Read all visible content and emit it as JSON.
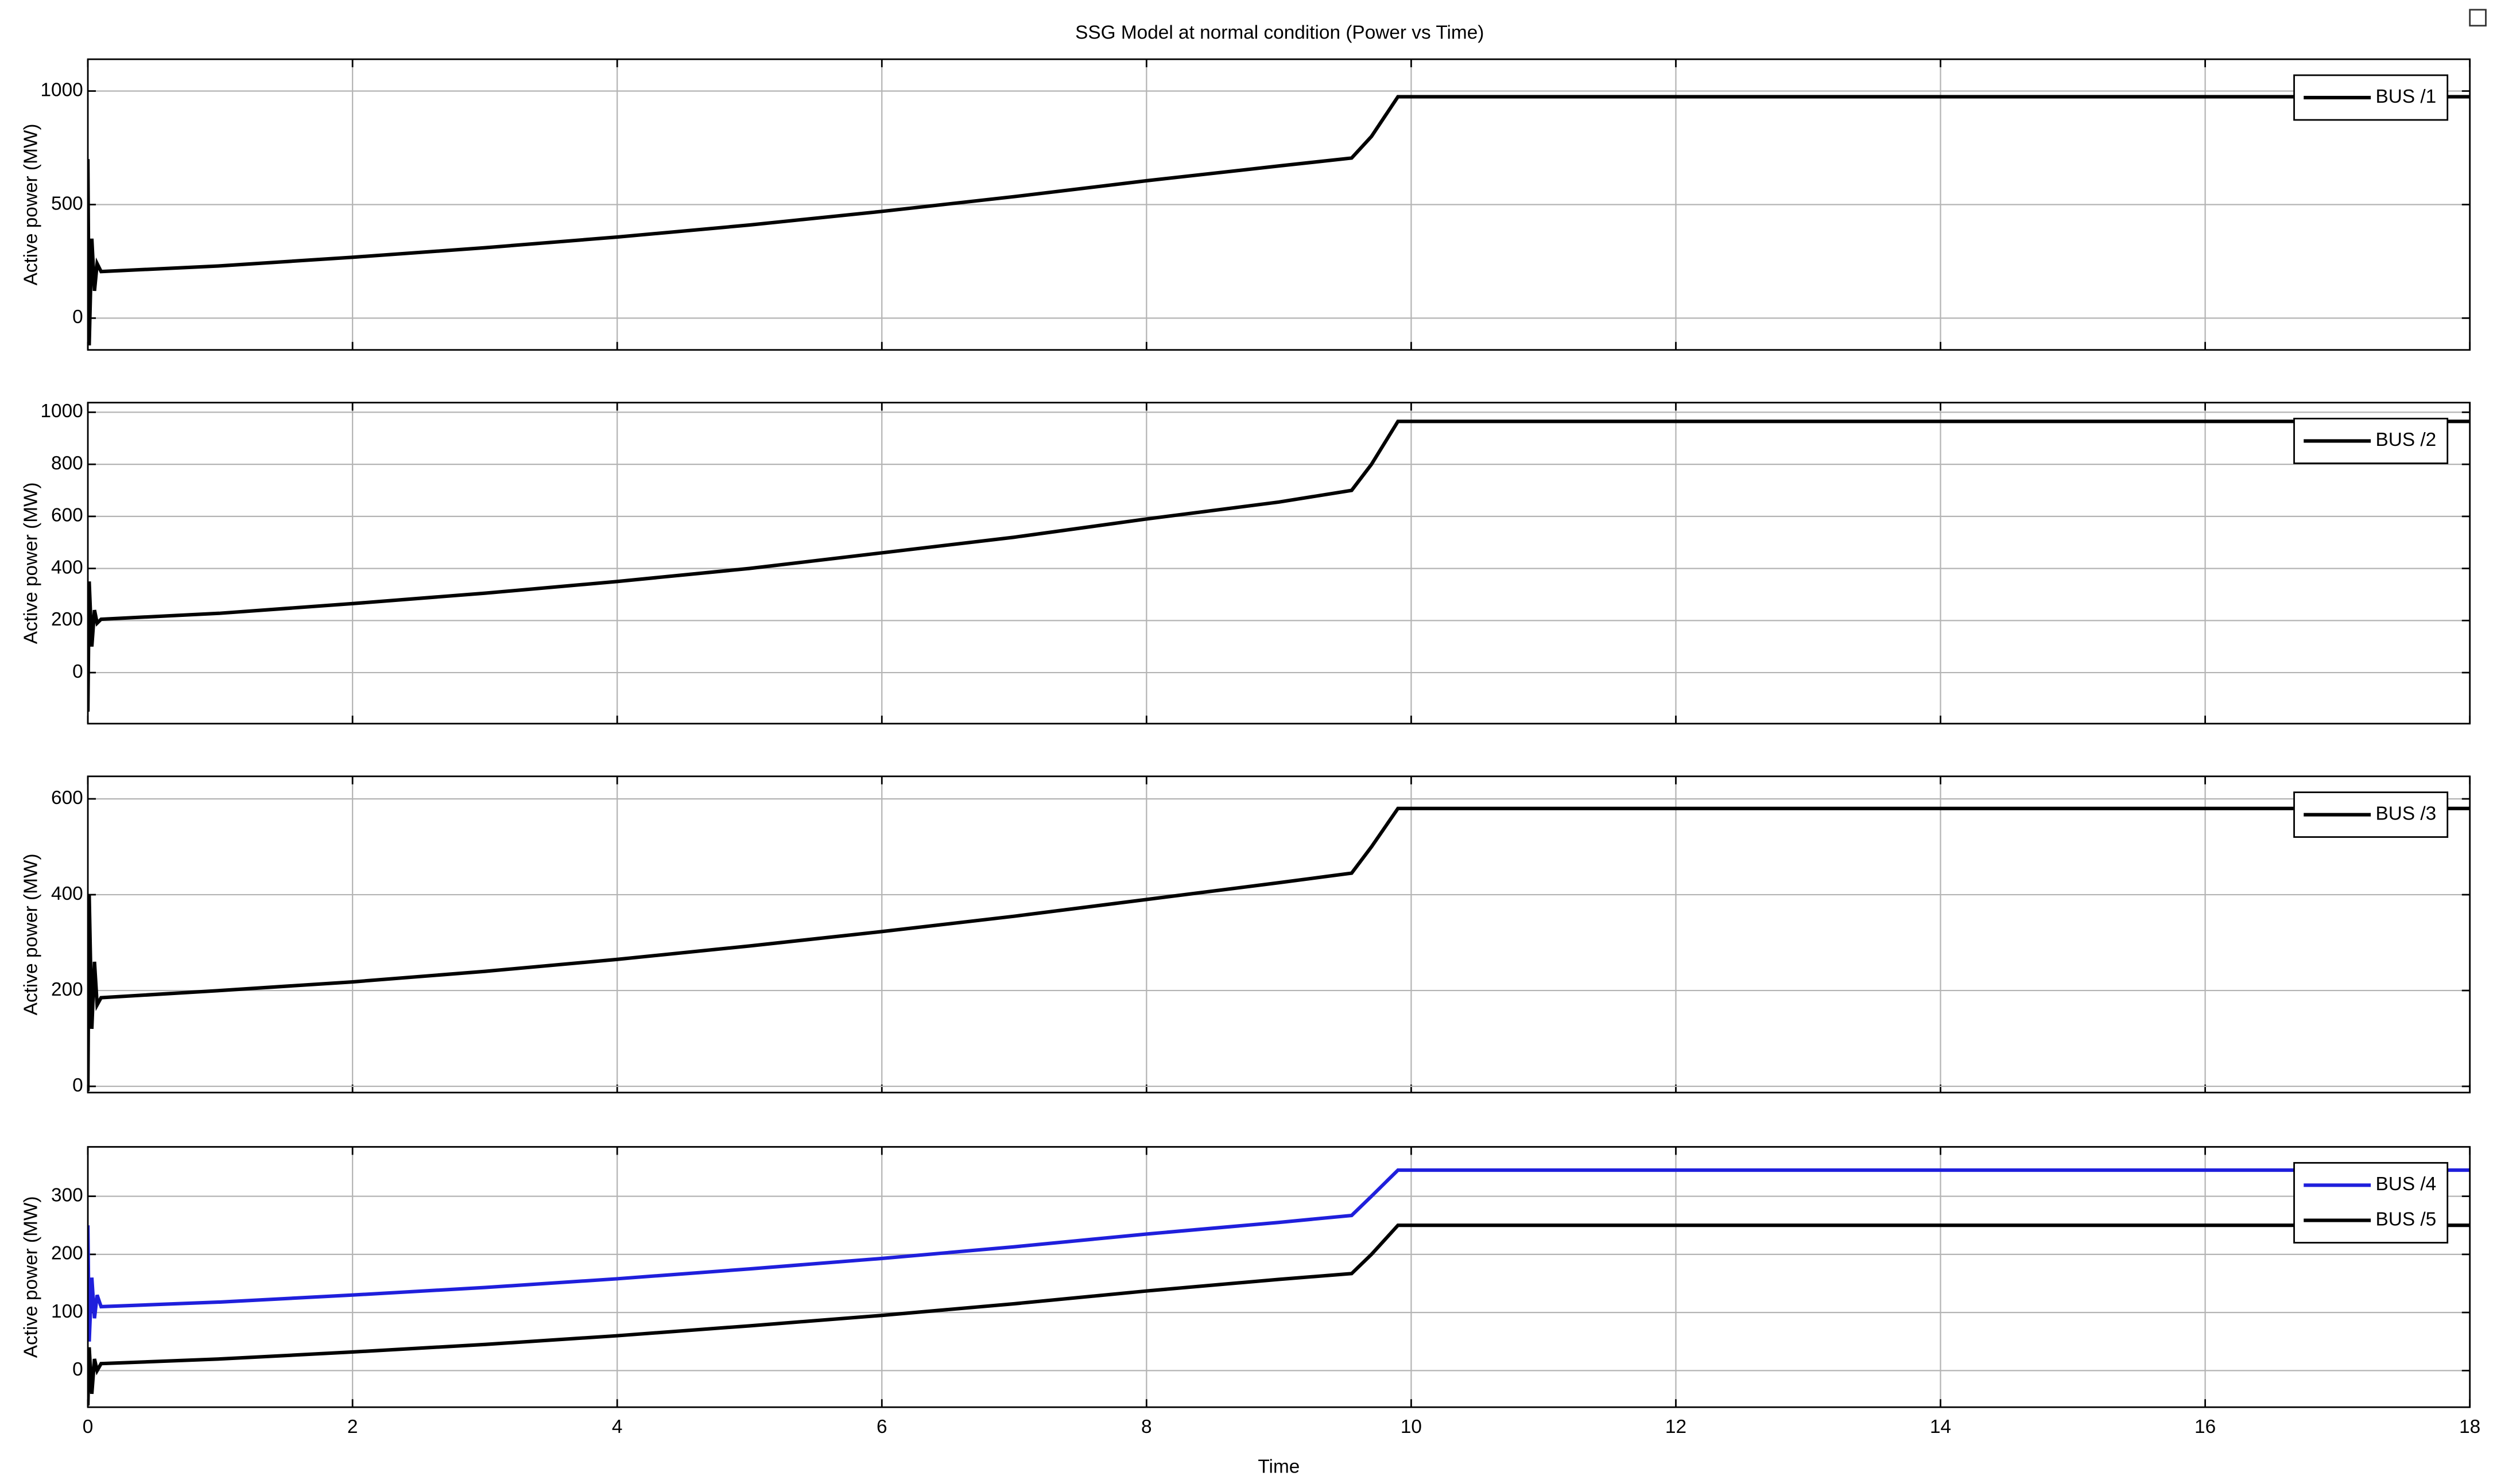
{
  "title": "SSG Model  at normal condition (Power vs Time)",
  "chart_data": [
    {
      "type": "line",
      "ylabel": "Active power (MW)",
      "xlim": [
        0,
        18
      ],
      "xticks": [
        0,
        2,
        4,
        6,
        8,
        10,
        12,
        14,
        16,
        18
      ],
      "ylim": [
        -140,
        1140
      ],
      "yticks": [
        0,
        500,
        1000
      ],
      "grid": true,
      "legend": "upper right",
      "x": [
        0,
        0.01,
        0.03,
        0.05,
        0.07,
        0.1,
        1,
        2,
        3,
        4,
        5,
        6,
        7,
        8,
        9,
        9.55,
        9.7,
        9.9,
        10,
        12,
        14,
        16,
        18
      ],
      "series": [
        {
          "name": "BUS /1",
          "color": "#000000",
          "values": [
            700,
            -120,
            350,
            120,
            240,
            205,
            230,
            268,
            310,
            357,
            410,
            470,
            535,
            605,
            670,
            705,
            800,
            975,
            975,
            975,
            975,
            975,
            975
          ]
        }
      ]
    },
    {
      "type": "line",
      "ylabel": "Active power (MW)",
      "xlim": [
        0,
        18
      ],
      "xticks": [
        0,
        2,
        4,
        6,
        8,
        10,
        12,
        14,
        16,
        18
      ],
      "ylim": [
        -196,
        1037
      ],
      "yticks": [
        0,
        200,
        400,
        600,
        800,
        1000
      ],
      "grid": true,
      "legend": "upper right",
      "x": [
        0,
        0.01,
        0.03,
        0.05,
        0.07,
        0.1,
        1,
        2,
        3,
        4,
        5,
        6,
        7,
        8,
        9,
        9.55,
        9.7,
        9.9,
        10,
        12,
        14,
        16,
        18
      ],
      "series": [
        {
          "name": "BUS /2",
          "color": "#000000",
          "values": [
            -150,
            350,
            100,
            240,
            190,
            205,
            228,
            265,
            305,
            350,
            400,
            460,
            520,
            590,
            655,
            700,
            800,
            965,
            965,
            965,
            965,
            965,
            965
          ]
        }
      ]
    },
    {
      "type": "line",
      "ylabel": "Active power (MW)",
      "xlim": [
        0,
        18
      ],
      "xticks": [
        0,
        2,
        4,
        6,
        8,
        10,
        12,
        14,
        16,
        18
      ],
      "ylim": [
        -13,
        647
      ],
      "yticks": [
        0,
        200,
        400,
        600
      ],
      "grid": true,
      "legend": "upper right",
      "x": [
        0,
        0.01,
        0.03,
        0.05,
        0.07,
        0.1,
        1,
        2,
        3,
        4,
        5,
        6,
        7,
        8,
        9,
        9.55,
        9.7,
        9.9,
        10,
        12,
        14,
        16,
        18
      ],
      "series": [
        {
          "name": "BUS /3",
          "color": "#000000",
          "values": [
            -10,
            400,
            120,
            260,
            170,
            185,
            200,
            218,
            240,
            265,
            293,
            323,
            355,
            390,
            425,
            445,
            500,
            580,
            580,
            580,
            580,
            580,
            580
          ]
        }
      ]
    },
    {
      "type": "line",
      "ylabel": "Active power (MW)",
      "xlabel": "Time",
      "xlim": [
        0,
        18
      ],
      "xticks": [
        0,
        2,
        4,
        6,
        8,
        10,
        12,
        14,
        16,
        18
      ],
      "ylim": [
        -63,
        385
      ],
      "yticks": [
        0,
        100,
        200,
        300
      ],
      "grid": true,
      "legend": "upper right",
      "x": [
        0,
        0.01,
        0.03,
        0.05,
        0.07,
        0.1,
        1,
        2,
        3,
        4,
        5,
        6,
        7,
        8,
        9,
        9.55,
        9.7,
        9.9,
        10,
        12,
        14,
        16,
        18
      ],
      "series": [
        {
          "name": "BUS /4",
          "color": "#1f1fdc",
          "values": [
            250,
            50,
            160,
            90,
            130,
            110,
            118,
            130,
            143,
            158,
            175,
            193,
            213,
            235,
            255,
            267,
            300,
            345,
            345,
            345,
            345,
            345,
            345
          ]
        },
        {
          "name": "BUS /5",
          "color": "#000000",
          "values": [
            -60,
            40,
            -40,
            20,
            0,
            12,
            20,
            32,
            45,
            60,
            77,
            95,
            115,
            137,
            157,
            167,
            200,
            250,
            250,
            250,
            250,
            250,
            250
          ]
        }
      ]
    }
  ]
}
